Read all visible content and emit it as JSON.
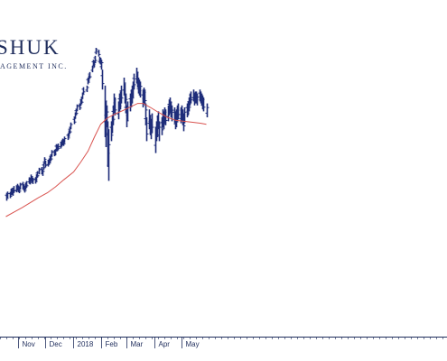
{
  "logo": {
    "main": "SHUK",
    "sub": "AGEMENT INC."
  },
  "colors": {
    "bars": "#1f2d7a",
    "moving_average": "#d9534f",
    "axis": "#1f2d5c"
  },
  "chart_data": {
    "type": "ohlc-bar",
    "title": "",
    "xlabel": "",
    "ylabel": "",
    "x_tick_labels": [
      "Nov",
      "Dec",
      "2018",
      "Feb",
      "Mar",
      "Apr",
      "May"
    ],
    "price_bars": [
      {
        "date": "2017-10-19",
        "high": 12.0,
        "low": 8.0
      },
      {
        "date": "2017-10-20",
        "high": 12.6,
        "low": 9.4
      },
      {
        "date": "2017-10-23",
        "high": 12.5,
        "low": 9.3
      },
      {
        "date": "2017-10-24",
        "high": 14.1,
        "low": 10.7
      },
      {
        "date": "2017-10-25",
        "high": 14.4,
        "low": 11.0
      },
      {
        "date": "2017-10-26",
        "high": 13.9,
        "low": 10.5
      },
      {
        "date": "2017-10-27",
        "high": 15.4,
        "low": 11.9
      },
      {
        "date": "2017-10-30",
        "high": 15.6,
        "low": 12.2
      },
      {
        "date": "2017-10-31",
        "high": 16.5,
        "low": 13.3
      },
      {
        "date": "2017-11-01",
        "high": 15.7,
        "low": 12.3
      },
      {
        "date": "2017-11-02",
        "high": 15.2,
        "low": 11.8
      },
      {
        "date": "2017-11-03",
        "high": 17.0,
        "low": 13.6
      },
      {
        "date": "2017-11-06",
        "high": 17.5,
        "low": 14.0
      },
      {
        "date": "2017-11-07",
        "high": 16.3,
        "low": 13.0
      },
      {
        "date": "2017-11-08",
        "high": 15.4,
        "low": 12.1
      },
      {
        "date": "2017-11-09",
        "high": 17.0,
        "low": 13.6
      },
      {
        "date": "2017-11-10",
        "high": 17.9,
        "low": 14.5
      },
      {
        "date": "2017-11-13",
        "high": 19.8,
        "low": 16.5
      },
      {
        "date": "2017-11-14",
        "high": 19.5,
        "low": 16.2
      },
      {
        "date": "2017-11-15",
        "high": 21.2,
        "low": 17.8
      },
      {
        "date": "2017-11-16",
        "high": 20.4,
        "low": 17.0
      },
      {
        "date": "2017-11-17",
        "high": 19.6,
        "low": 16.4
      },
      {
        "date": "2017-11-20",
        "high": 19.9,
        "low": 16.6
      },
      {
        "date": "2017-11-21",
        "high": 21.3,
        "low": 17.8
      },
      {
        "date": "2017-11-22",
        "high": 22.9,
        "low": 19.6
      },
      {
        "date": "2017-11-24",
        "high": 24.6,
        "low": 21.3
      },
      {
        "date": "2017-11-27",
        "high": 25.0,
        "low": 21.6
      },
      {
        "date": "2017-11-28",
        "high": 23.8,
        "low": 20.5
      },
      {
        "date": "2017-11-29",
        "high": 27.0,
        "low": 23.6
      },
      {
        "date": "2017-11-30",
        "high": 29.9,
        "low": 26.5
      },
      {
        "date": "2017-12-01",
        "high": 28.2,
        "low": 24.8
      },
      {
        "date": "2017-12-04",
        "high": 28.6,
        "low": 25.2
      },
      {
        "date": "2017-12-05",
        "high": 29.3,
        "low": 26.0
      },
      {
        "date": "2017-12-06",
        "high": 30.6,
        "low": 27.2
      },
      {
        "date": "2017-12-07",
        "high": 31.4,
        "low": 28.0
      },
      {
        "date": "2017-12-08",
        "high": 33.5,
        "low": 30.1
      },
      {
        "date": "2017-12-11",
        "high": 33.7,
        "low": 30.4
      },
      {
        "date": "2017-12-12",
        "high": 34.0,
        "low": 30.8
      },
      {
        "date": "2017-12-13",
        "high": 36.5,
        "low": 33.1
      },
      {
        "date": "2017-12-14",
        "high": 36.2,
        "low": 32.9
      },
      {
        "date": "2017-12-15",
        "high": 36.8,
        "low": 33.4
      },
      {
        "date": "2017-12-18",
        "high": 37.6,
        "low": 34.3
      },
      {
        "date": "2017-12-19",
        "high": 38.5,
        "low": 35.2
      },
      {
        "date": "2017-12-20",
        "high": 39.3,
        "low": 35.9
      },
      {
        "date": "2017-12-21",
        "high": 39.0,
        "low": 35.6
      },
      {
        "date": "2017-12-22",
        "high": 40.3,
        "low": 37.0
      },
      {
        "date": "2017-12-26",
        "high": 42.0,
        "low": 38.6
      },
      {
        "date": "2017-12-27",
        "high": 43.5,
        "low": 40.1
      },
      {
        "date": "2017-12-28",
        "high": 45.0,
        "low": 41.7
      },
      {
        "date": "2017-12-29",
        "high": 47.4,
        "low": 44.0
      },
      {
        "date": "2018-01-02",
        "high": 50.0,
        "low": 46.6
      },
      {
        "date": "2018-01-03",
        "high": 52.5,
        "low": 49.2
      },
      {
        "date": "2018-01-04",
        "high": 54.3,
        "low": 51.0
      },
      {
        "date": "2018-01-05",
        "high": 56.5,
        "low": 53.1
      },
      {
        "date": "2018-01-08",
        "high": 57.0,
        "low": 53.7
      },
      {
        "date": "2018-01-09",
        "high": 59.1,
        "low": 55.7
      },
      {
        "date": "2018-01-10",
        "high": 60.0,
        "low": 56.6
      },
      {
        "date": "2018-01-11",
        "high": 62.5,
        "low": 59.2
      },
      {
        "date": "2018-01-12",
        "high": 65.2,
        "low": 61.8
      },
      {
        "date": "2018-01-16",
        "high": 66.0,
        "low": 62.7
      },
      {
        "date": "2018-01-17",
        "high": 70.0,
        "low": 66.6
      },
      {
        "date": "2018-01-18",
        "high": 71.2,
        "low": 67.8
      },
      {
        "date": "2018-01-19",
        "high": 72.8,
        "low": 69.4
      },
      {
        "date": "2018-01-22",
        "high": 76.0,
        "low": 72.7
      },
      {
        "date": "2018-01-23",
        "high": 79.0,
        "low": 75.6
      },
      {
        "date": "2018-01-24",
        "high": 78.5,
        "low": 75.2
      },
      {
        "date": "2018-01-25",
        "high": 81.0,
        "low": 77.6
      },
      {
        "date": "2018-01-26",
        "high": 85.0,
        "low": 81.7
      },
      {
        "date": "2018-01-29",
        "high": 84.0,
        "low": 80.6
      },
      {
        "date": "2018-01-30",
        "high": 80.5,
        "low": 77.1
      },
      {
        "date": "2018-01-31",
        "high": 80.0,
        "low": 76.6
      },
      {
        "date": "2018-02-01",
        "high": 79.0,
        "low": 74.0
      },
      {
        "date": "2018-02-02",
        "high": 74.0,
        "low": 64.0
      },
      {
        "date": "2018-02-05",
        "high": 66.0,
        "low": 40.0
      },
      {
        "date": "2018-02-06",
        "high": 58.0,
        "low": 35.0
      },
      {
        "date": "2018-02-07",
        "high": 56.0,
        "low": 45.0
      },
      {
        "date": "2018-02-08",
        "high": 48.0,
        "low": 25.0
      },
      {
        "date": "2018-02-09",
        "high": 44.0,
        "low": 18.0
      },
      {
        "date": "2018-02-12",
        "high": 48.0,
        "low": 38.0
      },
      {
        "date": "2018-02-13",
        "high": 51.0,
        "low": 42.0
      },
      {
        "date": "2018-02-14",
        "high": 56.0,
        "low": 46.0
      },
      {
        "date": "2018-02-15",
        "high": 62.0,
        "low": 52.0
      },
      {
        "date": "2018-02-16",
        "high": 60.0,
        "low": 51.0
      },
      {
        "date": "2018-02-20",
        "high": 58.0,
        "low": 49.0
      },
      {
        "date": "2018-02-21",
        "high": 62.0,
        "low": 53.0
      },
      {
        "date": "2018-02-22",
        "high": 63.0,
        "low": 54.0
      },
      {
        "date": "2018-02-23",
        "high": 66.0,
        "low": 57.0
      },
      {
        "date": "2018-02-26",
        "high": 70.0,
        "low": 61.0
      },
      {
        "date": "2018-02-27",
        "high": 67.0,
        "low": 57.0
      },
      {
        "date": "2018-02-28",
        "high": 62.0,
        "low": 52.0
      },
      {
        "date": "2018-03-01",
        "high": 56.0,
        "low": 45.0
      },
      {
        "date": "2018-03-02",
        "high": 58.0,
        "low": 48.0
      },
      {
        "date": "2018-03-05",
        "high": 62.0,
        "low": 53.0
      },
      {
        "date": "2018-03-06",
        "high": 64.0,
        "low": 55.0
      },
      {
        "date": "2018-03-07",
        "high": 66.0,
        "low": 57.0
      },
      {
        "date": "2018-03-08",
        "high": 68.0,
        "low": 60.0
      },
      {
        "date": "2018-03-09",
        "high": 72.0,
        "low": 64.0
      },
      {
        "date": "2018-03-12",
        "high": 75.0,
        "low": 67.0
      },
      {
        "date": "2018-03-13",
        "high": 73.0,
        "low": 65.0
      },
      {
        "date": "2018-03-14",
        "high": 70.0,
        "low": 62.0
      },
      {
        "date": "2018-03-15",
        "high": 69.0,
        "low": 61.0
      },
      {
        "date": "2018-03-16",
        "high": 68.0,
        "low": 60.0
      },
      {
        "date": "2018-03-19",
        "high": 64.0,
        "low": 55.0
      },
      {
        "date": "2018-03-20",
        "high": 65.0,
        "low": 57.0
      },
      {
        "date": "2018-03-21",
        "high": 64.0,
        "low": 56.0
      },
      {
        "date": "2018-03-22",
        "high": 57.0,
        "low": 46.0
      },
      {
        "date": "2018-03-23",
        "high": 50.0,
        "low": 38.0
      },
      {
        "date": "2018-03-26",
        "high": 54.0,
        "low": 44.0
      },
      {
        "date": "2018-03-27",
        "high": 51.0,
        "low": 41.0
      },
      {
        "date": "2018-03-28",
        "high": 49.0,
        "low": 39.0
      },
      {
        "date": "2018-03-29",
        "high": 52.0,
        "low": 42.0
      },
      {
        "date": "2018-04-02",
        "high": 45.0,
        "low": 32.0
      },
      {
        "date": "2018-04-03",
        "high": 48.0,
        "low": 38.0
      },
      {
        "date": "2018-04-04",
        "high": 51.0,
        "low": 40.0
      },
      {
        "date": "2018-04-05",
        "high": 53.0,
        "low": 44.0
      },
      {
        "date": "2018-04-06",
        "high": 48.0,
        "low": 38.0
      },
      {
        "date": "2018-04-09",
        "high": 50.0,
        "low": 41.0
      },
      {
        "date": "2018-04-10",
        "high": 54.0,
        "low": 45.0
      },
      {
        "date": "2018-04-11",
        "high": 53.0,
        "low": 44.0
      },
      {
        "date": "2018-04-12",
        "high": 55.0,
        "low": 47.0
      },
      {
        "date": "2018-04-13",
        "high": 54.0,
        "low": 46.0
      },
      {
        "date": "2018-04-16",
        "high": 56.0,
        "low": 48.0
      },
      {
        "date": "2018-04-17",
        "high": 59.0,
        "low": 51.0
      },
      {
        "date": "2018-04-18",
        "high": 60.0,
        "low": 52.0
      },
      {
        "date": "2018-04-19",
        "high": 58.0,
        "low": 50.0
      },
      {
        "date": "2018-04-20",
        "high": 56.0,
        "low": 48.0
      },
      {
        "date": "2018-04-23",
        "high": 55.0,
        "low": 47.0
      },
      {
        "date": "2018-04-24",
        "high": 53.0,
        "low": 44.0
      },
      {
        "date": "2018-04-25",
        "high": 54.0,
        "low": 45.0
      },
      {
        "date": "2018-04-26",
        "high": 56.0,
        "low": 48.0
      },
      {
        "date": "2018-04-27",
        "high": 57.0,
        "low": 49.0
      },
      {
        "date": "2018-04-30",
        "high": 55.0,
        "low": 47.0
      },
      {
        "date": "2018-05-01",
        "high": 56.0,
        "low": 48.0
      },
      {
        "date": "2018-05-02",
        "high": 54.0,
        "low": 46.0
      },
      {
        "date": "2018-05-03",
        "high": 52.0,
        "low": 43.0
      },
      {
        "date": "2018-05-04",
        "high": 55.0,
        "low": 47.0
      },
      {
        "date": "2018-05-07",
        "high": 57.0,
        "low": 50.0
      },
      {
        "date": "2018-05-08",
        "high": 58.0,
        "low": 51.0
      },
      {
        "date": "2018-05-09",
        "high": 60.0,
        "low": 53.0
      },
      {
        "date": "2018-05-10",
        "high": 62.0,
        "low": 56.0
      },
      {
        "date": "2018-05-11",
        "high": 63.0,
        "low": 57.0
      },
      {
        "date": "2018-05-14",
        "high": 64.0,
        "low": 58.0
      },
      {
        "date": "2018-05-15",
        "high": 62.0,
        "low": 56.0
      },
      {
        "date": "2018-05-16",
        "high": 63.0,
        "low": 57.0
      },
      {
        "date": "2018-05-17",
        "high": 63.0,
        "low": 57.0
      },
      {
        "date": "2018-05-18",
        "high": 62.0,
        "low": 56.0
      },
      {
        "date": "2018-05-21",
        "high": 64.0,
        "low": 58.0
      },
      {
        "date": "2018-05-22",
        "high": 63.0,
        "low": 57.0
      },
      {
        "date": "2018-05-23",
        "high": 62.0,
        "low": 56.0
      },
      {
        "date": "2018-05-24",
        "high": 61.0,
        "low": 54.0
      },
      {
        "date": "2018-05-25",
        "high": 60.0,
        "low": 53.0
      },
      {
        "date": "2018-05-29",
        "high": 57.0,
        "low": 50.0
      }
    ],
    "moving_average": [
      {
        "date": "2017-10-19",
        "value": 0.0
      },
      {
        "date": "2017-10-27",
        "value": 2.0
      },
      {
        "date": "2017-11-06",
        "value": 4.5
      },
      {
        "date": "2017-11-15",
        "value": 7.0
      },
      {
        "date": "2017-11-24",
        "value": 9.5
      },
      {
        "date": "2017-12-04",
        "value": 12.0
      },
      {
        "date": "2017-12-13",
        "value": 15.0
      },
      {
        "date": "2017-12-22",
        "value": 18.5
      },
      {
        "date": "2018-01-02",
        "value": 22.5
      },
      {
        "date": "2018-01-10",
        "value": 27.5
      },
      {
        "date": "2018-01-18",
        "value": 33.0
      },
      {
        "date": "2018-01-25",
        "value": 40.0
      },
      {
        "date": "2018-02-01",
        "value": 46.5
      },
      {
        "date": "2018-02-08",
        "value": 49.5
      },
      {
        "date": "2018-02-16",
        "value": 51.5
      },
      {
        "date": "2018-02-26",
        "value": 53.5
      },
      {
        "date": "2018-03-07",
        "value": 55.5
      },
      {
        "date": "2018-03-14",
        "value": 57.0
      },
      {
        "date": "2018-03-20",
        "value": 57.0
      },
      {
        "date": "2018-03-28",
        "value": 55.0
      },
      {
        "date": "2018-04-06",
        "value": 52.5
      },
      {
        "date": "2018-04-16",
        "value": 50.0
      },
      {
        "date": "2018-04-25",
        "value": 48.5
      },
      {
        "date": "2018-05-04",
        "value": 48.0
      },
      {
        "date": "2018-05-14",
        "value": 47.5
      },
      {
        "date": "2018-05-23",
        "value": 47.0
      },
      {
        "date": "2018-05-29",
        "value": 46.5
      }
    ]
  }
}
